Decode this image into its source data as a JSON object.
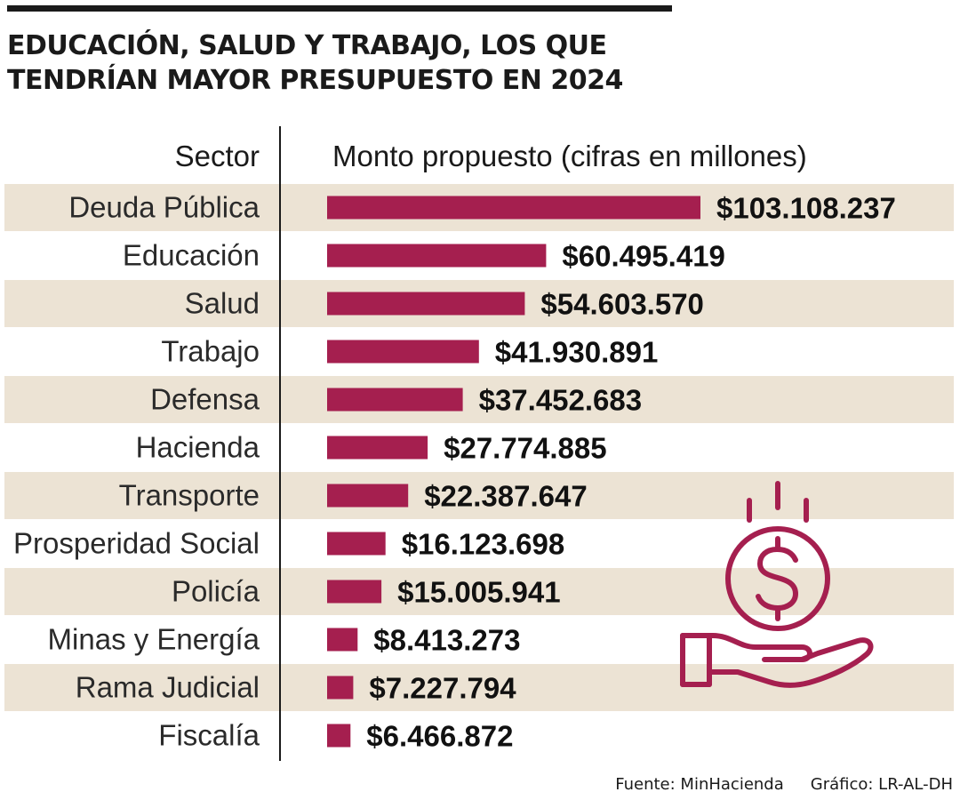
{
  "header": {
    "title_line1": "EDUCACIÓN, SALUD Y TRABAJO, LOS QUE",
    "title_line2": "TENDRÍAN MAYOR PRESUPUESTO EN 2024"
  },
  "footer": {
    "source": "Fuente: MinHacienda",
    "credit": "Gráfico: LR-AL-DH"
  },
  "colors": {
    "bar": "#a51f4f",
    "band": "#ece3d4",
    "icon": "#a51f4f"
  },
  "icon": "money-hand-icon",
  "chart_data": {
    "type": "bar",
    "orientation": "horizontal",
    "category_header": "Sector",
    "value_header": "Monto propuesto (cifras en millones)",
    "categories": [
      "Deuda Pública",
      "Educación",
      "Salud",
      "Trabajo",
      "Defensa",
      "Hacienda",
      "Transporte",
      "Prosperidad Social",
      "Policía",
      "Minas y Energía",
      "Rama Judicial",
      "Fiscalía"
    ],
    "values": [
      103108237,
      60495419,
      54603570,
      41930891,
      37452683,
      27774885,
      22387647,
      16123698,
      15005941,
      8413273,
      7227794,
      6466872
    ],
    "labels": [
      "$103.108.237",
      "$60.495.419",
      "$54.603.570",
      "$41.930.891",
      "$37.452.683",
      "$27.774.885",
      "$22.387.647",
      "$16.123.698",
      "$15.005.941",
      "$8.413.273",
      "$7.227.794",
      "$6.466.872"
    ]
  }
}
